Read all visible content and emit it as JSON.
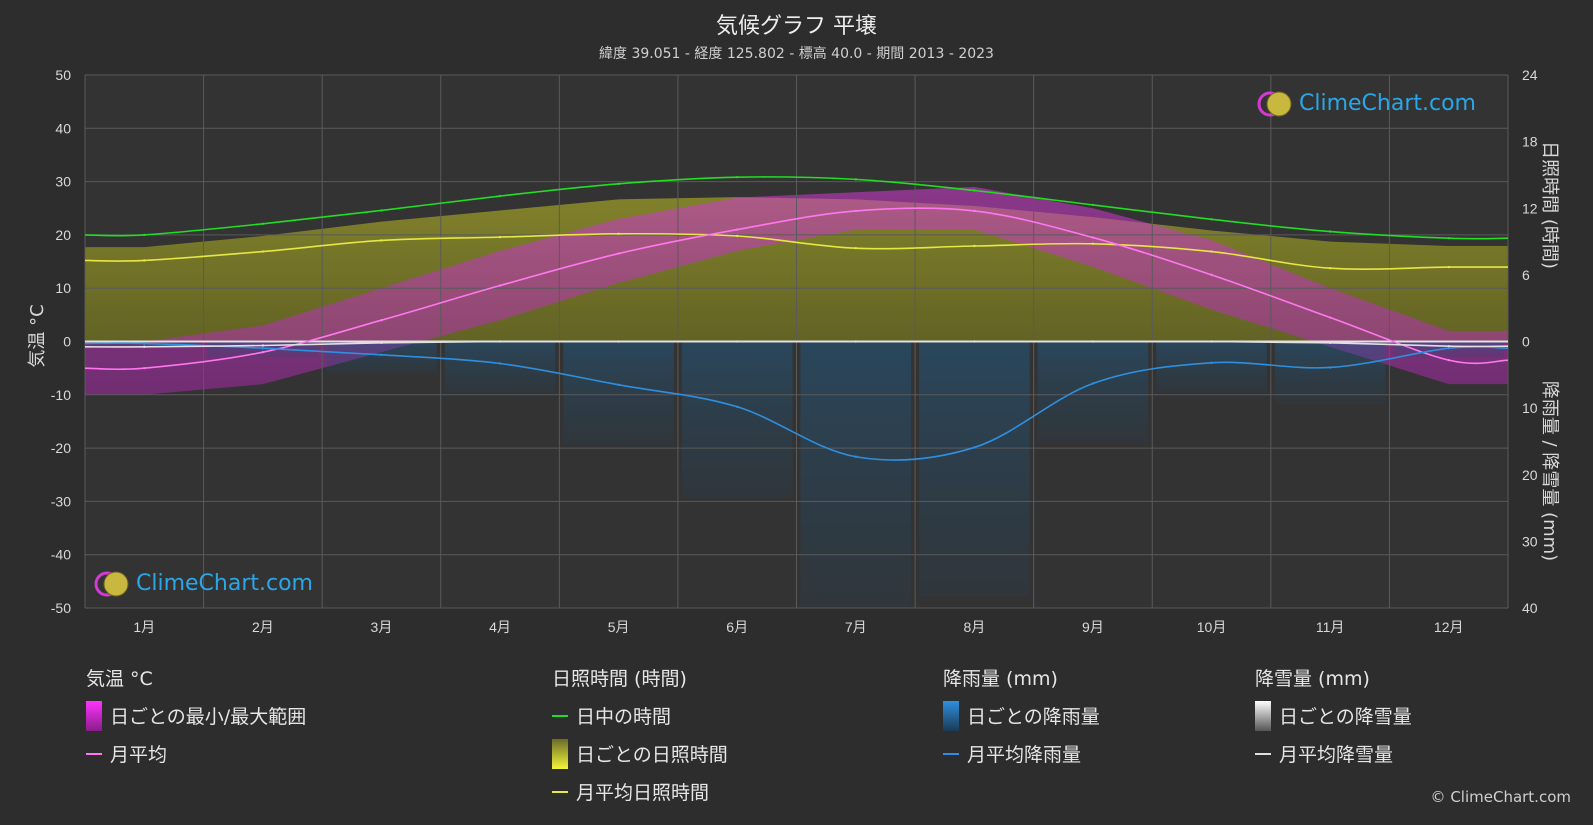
{
  "title": "気候グラフ 平壌",
  "subtitle": "緯度 39.051 - 経度 125.802 - 標高 40.0 - 期間 2013 - 2023",
  "axes": {
    "left_title": "気温 °C",
    "right_top_title": "日照時間 (時間)",
    "right_bottom_title": "降雨量 / 降雪量 (mm)"
  },
  "chart_data": {
    "type": "line",
    "categories": [
      "1月",
      "2月",
      "3月",
      "4月",
      "5月",
      "6月",
      "7月",
      "8月",
      "9月",
      "10月",
      "11月",
      "12月"
    ],
    "temp_axis": {
      "min": -50,
      "max": 50,
      "ticks": [
        50,
        40,
        30,
        20,
        10,
        0,
        -10,
        -20,
        -30,
        -40,
        -50
      ]
    },
    "sunshine_axis": {
      "min": 0,
      "max": 24,
      "ticks": [
        24,
        18,
        12,
        6,
        0
      ]
    },
    "precip_axis": {
      "min": 0,
      "max": 40,
      "inverted": true,
      "ticks": [
        0,
        10,
        20,
        30,
        40
      ]
    },
    "series": [
      {
        "name": "日中の時間",
        "axis": "sunshine",
        "color": "#22dd22",
        "values": [
          9.6,
          10.6,
          11.8,
          13.1,
          14.2,
          14.8,
          14.6,
          13.6,
          12.3,
          11.0,
          9.9,
          9.3
        ]
      },
      {
        "name": "月平均日照時間",
        "axis": "sunshine",
        "color": "#e6e645",
        "values": [
          7.3,
          8.1,
          9.1,
          9.4,
          9.7,
          9.5,
          8.4,
          8.6,
          8.8,
          8.1,
          6.6,
          6.7
        ]
      },
      {
        "name": "月平均",
        "axis": "temperature",
        "color": "#ff77ee",
        "values": [
          -5.0,
          -2.0,
          4.0,
          10.5,
          16.5,
          21.0,
          24.5,
          24.5,
          19.5,
          12.5,
          4.5,
          -3.5
        ]
      },
      {
        "name": "月平均降雨量",
        "axis": "precipitation",
        "color": "#2e8fe0",
        "values": [
          0.3,
          1.0,
          2.0,
          3.3,
          6.5,
          9.8,
          17.3,
          15.9,
          6.3,
          3.2,
          3.9,
          1.0
        ]
      },
      {
        "name": "月平均降雪量",
        "axis": "precipitation",
        "color": "#e0e0e0",
        "values": [
          0.8,
          0.6,
          0.2,
          0,
          0,
          0,
          0,
          0,
          0,
          0,
          0.2,
          0.7
        ]
      }
    ],
    "daily_temp_range": {
      "name": "日ごとの最小/最大範囲",
      "min": [
        -10,
        -8,
        -2,
        4,
        11,
        17,
        21,
        21,
        14,
        6,
        -1,
        -8
      ],
      "max": [
        0,
        3,
        10,
        17,
        23,
        27,
        28,
        29,
        25,
        19,
        10,
        2
      ]
    },
    "daily_sunshine": {
      "name": "日ごとの日照時間",
      "max": [
        8.5,
        9.5,
        10.8,
        11.8,
        12.8,
        13.0,
        12.8,
        12.2,
        11.2,
        10.0,
        9.0,
        8.6
      ]
    }
  },
  "legend": {
    "temp_head": "気温 °C",
    "temp_range": "日ごとの最小/最大範囲",
    "temp_avg": "月平均",
    "sun_head": "日照時間 (時間)",
    "sun_daylight": "日中の時間",
    "sun_daily": "日ごとの日照時間",
    "sun_avg": "月平均日照時間",
    "rain_head": "降雨量 (mm)",
    "rain_daily": "日ごとの降雨量",
    "rain_avg": "月平均降雨量",
    "snow_head": "降雪量 (mm)",
    "snow_daily": "日ごとの降雪量",
    "snow_avg": "月平均降雪量"
  },
  "brand": {
    "logo_text": "ClimeChart.com",
    "copyright": "© ClimeChart.com"
  }
}
